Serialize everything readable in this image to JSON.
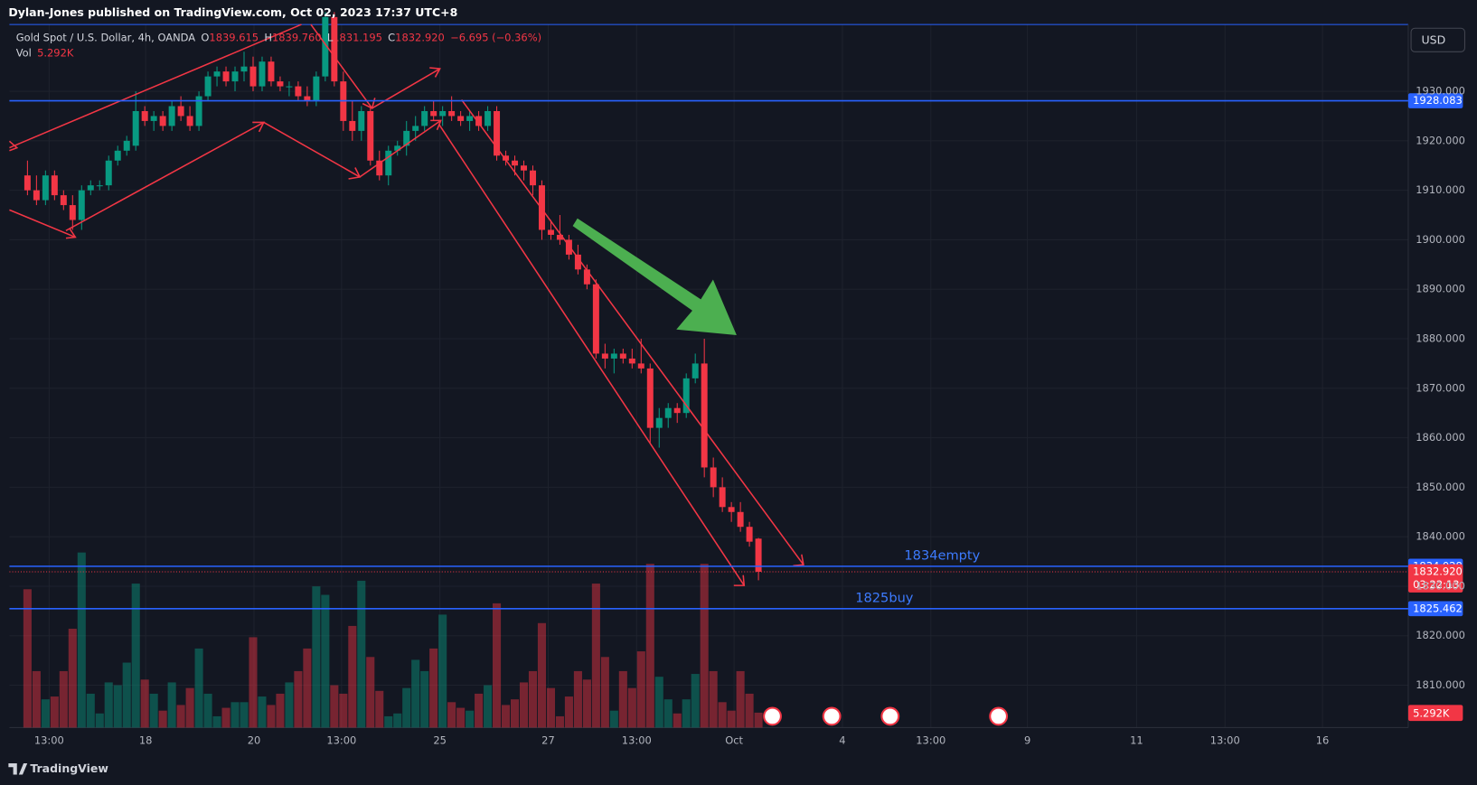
{
  "header": {
    "publisher": "Dylan-Jones published on TradingView.com, Oct 02, 2023 17:37 UTC+8",
    "currency": "USD",
    "brand": "TradingView"
  },
  "chart_data": {
    "type": "candlestick",
    "title": "Gold Spot / U.S. Dollar, 4h, OANDA",
    "legend_items": [
      [
        "O",
        "1839.615"
      ],
      [
        "H",
        "1839.760"
      ],
      [
        "L",
        "1831.195"
      ],
      [
        "C",
        "1832.920"
      ]
    ],
    "change": "−6.695 (−0.36%)",
    "volume_name": "Vol",
    "volume_label": "5.292K",
    "x": [
      0,
      1,
      2,
      3,
      4,
      5,
      6,
      7,
      8,
      9,
      10,
      11,
      12,
      13,
      14,
      15,
      16,
      17,
      18,
      19,
      20,
      21,
      22,
      23,
      24,
      25,
      26,
      27,
      28,
      29,
      30,
      31,
      32,
      33,
      34,
      35,
      36,
      37,
      38,
      39,
      40,
      41,
      42,
      43,
      44,
      45,
      46,
      47,
      48,
      49,
      50,
      51,
      52,
      53,
      54,
      55,
      56,
      57,
      58,
      59,
      60,
      61,
      62,
      63,
      64,
      65,
      66,
      67,
      68,
      69,
      70,
      71,
      72,
      73,
      74,
      75,
      76,
      77,
      78,
      79,
      80,
      81
    ],
    "open": [
      1913,
      1910,
      1908,
      1913,
      1909,
      1907,
      1904,
      1910,
      1911,
      1911,
      1916,
      1918,
      1919,
      1926,
      1924,
      1925,
      1923,
      1927,
      1925,
      1923,
      1929,
      1933,
      1934,
      1932,
      1934,
      1935,
      1931,
      1936,
      1932,
      1931,
      1931,
      1929,
      1928,
      1933,
      1945,
      1932,
      1924,
      1922,
      1926,
      1916,
      1913,
      1918,
      1919,
      1922,
      1923,
      1926,
      1925,
      1926,
      1925,
      1924,
      1925,
      1923,
      1926,
      1917,
      1916,
      1915,
      1914,
      1911,
      1902,
      1901,
      1900,
      1897,
      1894,
      1891,
      1877,
      1876,
      1877,
      1876,
      1875,
      1874,
      1862,
      1864,
      1866,
      1865,
      1872,
      1875,
      1854,
      1850,
      1846,
      1845,
      1842,
      1839.615
    ],
    "high": [
      1916,
      1913,
      1914,
      1914,
      1910,
      1909,
      1911,
      1912,
      1912,
      1917,
      1919,
      1921,
      1930,
      1927,
      1926,
      1926,
      1928,
      1929,
      1927,
      1930,
      1934,
      1935,
      1935,
      1935,
      1938,
      1937,
      1937,
      1937,
      1933,
      1932,
      1932,
      1931,
      1934,
      1946,
      1946,
      1934,
      1928,
      1927,
      1927,
      1918,
      1919,
      1920,
      1924,
      1925,
      1927,
      1928,
      1927,
      1929,
      1926,
      1926,
      1926,
      1927,
      1927,
      1918,
      1917,
      1916,
      1915,
      1912,
      1904,
      1905,
      1901,
      1899,
      1895,
      1892,
      1879,
      1878,
      1878,
      1878,
      1880,
      1875,
      1866,
      1867,
      1867,
      1873,
      1877,
      1880,
      1856,
      1852,
      1847,
      1847,
      1843,
      1839.76
    ],
    "low": [
      1909,
      1907,
      1907,
      1908,
      1906,
      1902,
      1902,
      1909,
      1910,
      1910,
      1915,
      1917,
      1918,
      1923,
      1922,
      1922,
      1922,
      1924,
      1922,
      1922,
      1928,
      1931,
      1931,
      1930,
      1932,
      1930,
      1930,
      1931,
      1930,
      1929,
      1928,
      1927,
      1927,
      1932,
      1931,
      1922,
      1920,
      1920,
      1915,
      1912,
      1911,
      1917,
      1917,
      1920,
      1922,
      1924,
      1923,
      1924,
      1923,
      1922,
      1922,
      1922,
      1916,
      1915,
      1913,
      1912,
      1909,
      1900,
      1900,
      1899,
      1896,
      1893,
      1890,
      1876,
      1874,
      1873,
      1875,
      1874,
      1873,
      1859,
      1858,
      1862,
      1863,
      1864,
      1871,
      1852,
      1848,
      1845,
      1843,
      1841,
      1838,
      1831.195
    ],
    "close": [
      1910,
      1908,
      1913,
      1909,
      1907,
      1904,
      1910,
      1911,
      1911,
      1916,
      1918,
      1920,
      1926,
      1924,
      1925,
      1923,
      1927,
      1925,
      1923,
      1929,
      1933,
      1934,
      1932,
      1934,
      1935,
      1931,
      1936,
      1932,
      1931,
      1931,
      1929,
      1928,
      1933,
      1945,
      1932,
      1924,
      1922,
      1926,
      1916,
      1913,
      1918,
      1919,
      1922,
      1923,
      1926,
      1925,
      1926,
      1925,
      1924,
      1925,
      1923,
      1926,
      1917,
      1916,
      1915,
      1914,
      1911,
      1902,
      1901,
      1900,
      1897,
      1894,
      1891,
      1877,
      1876,
      1877,
      1876,
      1875,
      1874,
      1862,
      1864,
      1866,
      1865,
      1872,
      1875,
      1854,
      1850,
      1846,
      1845,
      1842,
      1839,
      1832.92
    ],
    "volume": [
      49000,
      20000,
      10000,
      11000,
      20000,
      35000,
      62000,
      12000,
      5000,
      16000,
      15000,
      23000,
      51000,
      17000,
      12000,
      6000,
      16000,
      8000,
      14000,
      28000,
      12000,
      4000,
      7000,
      9000,
      9000,
      32000,
      11000,
      8000,
      12000,
      16000,
      20000,
      28000,
      50000,
      47000,
      15000,
      12000,
      36000,
      52000,
      25000,
      13000,
      4000,
      5000,
      14000,
      24000,
      20000,
      28000,
      40000,
      9000,
      7000,
      6000,
      12000,
      15000,
      44000,
      8000,
      10000,
      16000,
      20000,
      37000,
      14000,
      4000,
      11000,
      20000,
      17000,
      51000,
      25000,
      6000,
      20000,
      14000,
      27000,
      58000,
      18000,
      10000,
      5000,
      10000,
      19000,
      58000,
      20000,
      9000,
      6000,
      20000,
      12000,
      5292
    ],
    "colors": {
      "up": "#089981",
      "down": "#f23645",
      "level": "#2962ff"
    },
    "xlim": [
      -2,
      153
    ],
    "xticks": [
      {
        "value": 2.4,
        "label": "13:00"
      },
      {
        "value": 13.1,
        "label": "18"
      },
      {
        "value": 25.1,
        "label": "20"
      },
      {
        "value": 34.8,
        "label": "13:00"
      },
      {
        "value": 45.7,
        "label": "25"
      },
      {
        "value": 57.7,
        "label": "27"
      },
      {
        "value": 67.5,
        "label": "13:00"
      },
      {
        "value": 78.3,
        "label": "Oct"
      },
      {
        "value": 90.3,
        "label": "4"
      },
      {
        "value": 100.1,
        "label": "13:00"
      },
      {
        "value": 110.8,
        "label": "9"
      },
      {
        "value": 122.9,
        "label": "11"
      },
      {
        "value": 132.7,
        "label": "13:00"
      },
      {
        "value": 143.5,
        "label": "16"
      }
    ],
    "ylim": [
      1801.44,
      1943.5
    ],
    "yticks": [
      {
        "value": 1810,
        "label": "1810.000"
      },
      {
        "value": 1820,
        "label": "1820.000"
      },
      {
        "value": 1830,
        "label": "1830.000"
      },
      {
        "value": 1840,
        "label": "1840.000"
      },
      {
        "value": 1850,
        "label": "1850.000"
      },
      {
        "value": 1860,
        "label": "1860.000"
      },
      {
        "value": 1870,
        "label": "1870.000"
      },
      {
        "value": 1880,
        "label": "1880.000"
      },
      {
        "value": 1890,
        "label": "1890.000"
      },
      {
        "value": 1900,
        "label": "1900.000"
      },
      {
        "value": 1910,
        "label": "1910.000"
      },
      {
        "value": 1920,
        "label": "1920.000"
      },
      {
        "value": 1930,
        "label": "1930.000"
      }
    ],
    "vlim": [
      0,
      62000
    ],
    "grid": true,
    "levels": [
      {
        "value": 1928.083
      },
      {
        "value": 1834.028,
        "annotation": "1834empty"
      },
      {
        "value": 1825.462,
        "annotation": "1825buy"
      }
    ],
    "last_price": {
      "value": 1832.92,
      "label": "1832.920",
      "countdown": "03:22:13"
    }
  }
}
